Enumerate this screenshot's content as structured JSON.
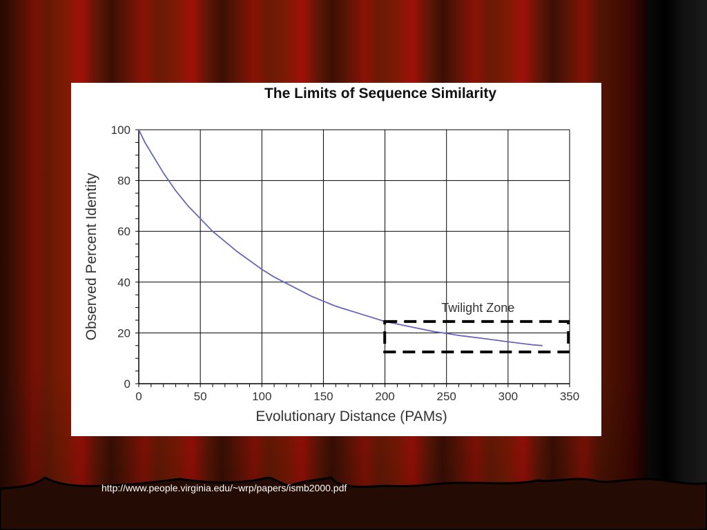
{
  "slide": {
    "footer_url": "http://www.people.virginia.edu/~wrp/papers/ismb2000.pdf"
  },
  "chart_data": {
    "type": "line",
    "title": "The Limits of Sequence Similarity",
    "xlabel": "Evolutionary Distance (PAMs)",
    "ylabel": "Observed Percent Identity",
    "xlim": [
      0,
      350
    ],
    "ylim": [
      0,
      100
    ],
    "xticks": [
      0,
      50,
      100,
      150,
      200,
      250,
      300,
      350
    ],
    "yticks": [
      0,
      20,
      40,
      60,
      80,
      100
    ],
    "grid": true,
    "series": [
      {
        "color": "#6666bb",
        "x": [
          0,
          5,
          10,
          20,
          30,
          40,
          50,
          60,
          70,
          80,
          90,
          100,
          110,
          120,
          130,
          140,
          150,
          160,
          180,
          200,
          220,
          240,
          250,
          260,
          280,
          300,
          320,
          328
        ],
        "y": [
          100,
          95,
          91,
          83,
          76,
          70,
          65,
          60,
          56,
          52,
          48.5,
          45,
          42,
          39.5,
          37,
          34.5,
          32.5,
          30.5,
          27.5,
          24.5,
          22.5,
          20.5,
          19.8,
          19,
          17.8,
          16.5,
          15.3,
          15
        ]
      }
    ],
    "annotation": {
      "label": "Twilight Zone",
      "x_range": [
        197,
        349
      ],
      "y_range": [
        12.5,
        24.5
      ]
    }
  }
}
